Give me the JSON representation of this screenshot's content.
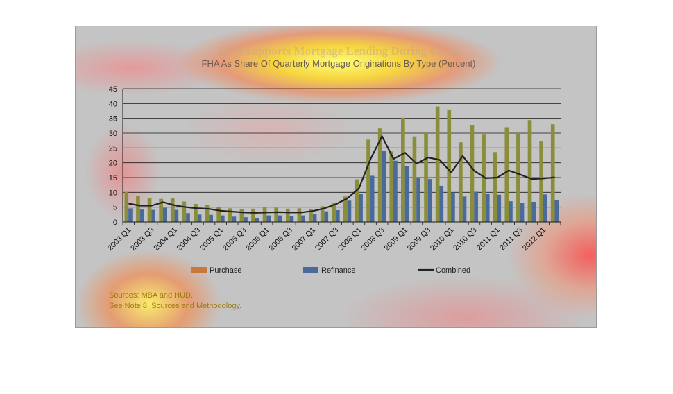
{
  "chart_data": {
    "type": "bar",
    "title": "FHA Supports Mortgage Lending During Crisis",
    "subtitle": "FHA As Share Of Quarterly Mortgage Originations By Type (Percent)",
    "xlabel": "",
    "ylabel": "",
    "ylim": [
      0,
      45
    ],
    "yticks": [
      0,
      5,
      10,
      15,
      20,
      25,
      30,
      35,
      40,
      45
    ],
    "grid": true,
    "legend_position": "bottom",
    "categories": [
      "2003 Q1",
      "2003 Q2",
      "2003 Q3",
      "2003 Q4",
      "2004 Q1",
      "2004 Q2",
      "2004 Q3",
      "2004 Q4",
      "2005 Q1",
      "2005 Q2",
      "2005 Q3",
      "2005 Q4",
      "2006 Q1",
      "2006 Q2",
      "2006 Q3",
      "2006 Q4",
      "2007 Q1",
      "2007 Q2",
      "2007 Q3",
      "2007 Q4",
      "2008 Q1",
      "2008 Q2",
      "2008 Q3",
      "2008 Q4",
      "2009 Q1",
      "2009 Q2",
      "2009 Q3",
      "2009 Q4",
      "2010 Q1",
      "2010 Q2",
      "2010 Q3",
      "2010 Q4",
      "2011 Q1",
      "2011 Q2",
      "2011 Q3",
      "2011 Q4",
      "2012 Q1",
      "2012 Q2"
    ],
    "tick_labels": [
      "2003 Q1",
      "2003 Q3",
      "2004 Q1",
      "2004 Q3",
      "2005 Q1",
      "2005 Q3",
      "2006 Q1",
      "2006 Q3",
      "2007 Q1",
      "2007 Q3",
      "2008 Q1",
      "2008 Q3",
      "2009 Q1",
      "2009 Q3",
      "2010 Q1",
      "2010 Q3",
      "2011 Q1",
      "2011 Q3",
      "2012 Q1"
    ],
    "series": [
      {
        "name": "Purchase",
        "type": "bar",
        "color": "#8a8e3a",
        "values": [
          10.1,
          8.7,
          8.2,
          7.8,
          8.1,
          6.9,
          6.1,
          5.8,
          5.1,
          4.6,
          4.3,
          4.5,
          4.9,
          4.8,
          4.5,
          4.6,
          4.4,
          5.3,
          6.4,
          8.6,
          14.4,
          27.8,
          31.6,
          23.8,
          35.2,
          28.9,
          30.3,
          39.0,
          38.0,
          26.9,
          32.8,
          29.7,
          23.6,
          32.0,
          30.0,
          34.4,
          27.4,
          33.0
        ]
      },
      {
        "name": "Refinance",
        "type": "bar",
        "color": "#4a6a9a",
        "values": [
          4.6,
          4.2,
          4.1,
          4.8,
          4.1,
          3.0,
          2.5,
          2.4,
          2.2,
          1.8,
          1.6,
          1.4,
          2.2,
          2.2,
          2.0,
          2.2,
          2.8,
          3.6,
          4.0,
          7.2,
          9.5,
          15.6,
          24.0,
          20.7,
          18.8,
          14.8,
          14.5,
          12.2,
          10.0,
          8.6,
          10.2,
          9.4,
          9.2,
          7.0,
          6.4,
          6.8,
          9.3,
          7.4
        ]
      },
      {
        "name": "Combined",
        "type": "line",
        "color": "#222222",
        "values": [
          6.2,
          5.5,
          5.5,
          6.7,
          5.6,
          5.0,
          4.6,
          4.4,
          3.8,
          3.5,
          3.2,
          3.1,
          3.2,
          3.3,
          3.2,
          3.2,
          3.7,
          4.6,
          6.0,
          8.0,
          11.4,
          21.2,
          29.0,
          21.3,
          23.4,
          19.7,
          21.8,
          21.0,
          16.7,
          22.3,
          17.3,
          14.8,
          15.0,
          17.4,
          16.0,
          14.5,
          14.7,
          15.1
        ]
      }
    ],
    "legend": [
      "Purchase",
      "Refinance",
      "Combined"
    ]
  },
  "sources": {
    "line1": "Sources:  MBA and HUD.",
    "line2": "See Note 8, Sources and Methodology."
  }
}
